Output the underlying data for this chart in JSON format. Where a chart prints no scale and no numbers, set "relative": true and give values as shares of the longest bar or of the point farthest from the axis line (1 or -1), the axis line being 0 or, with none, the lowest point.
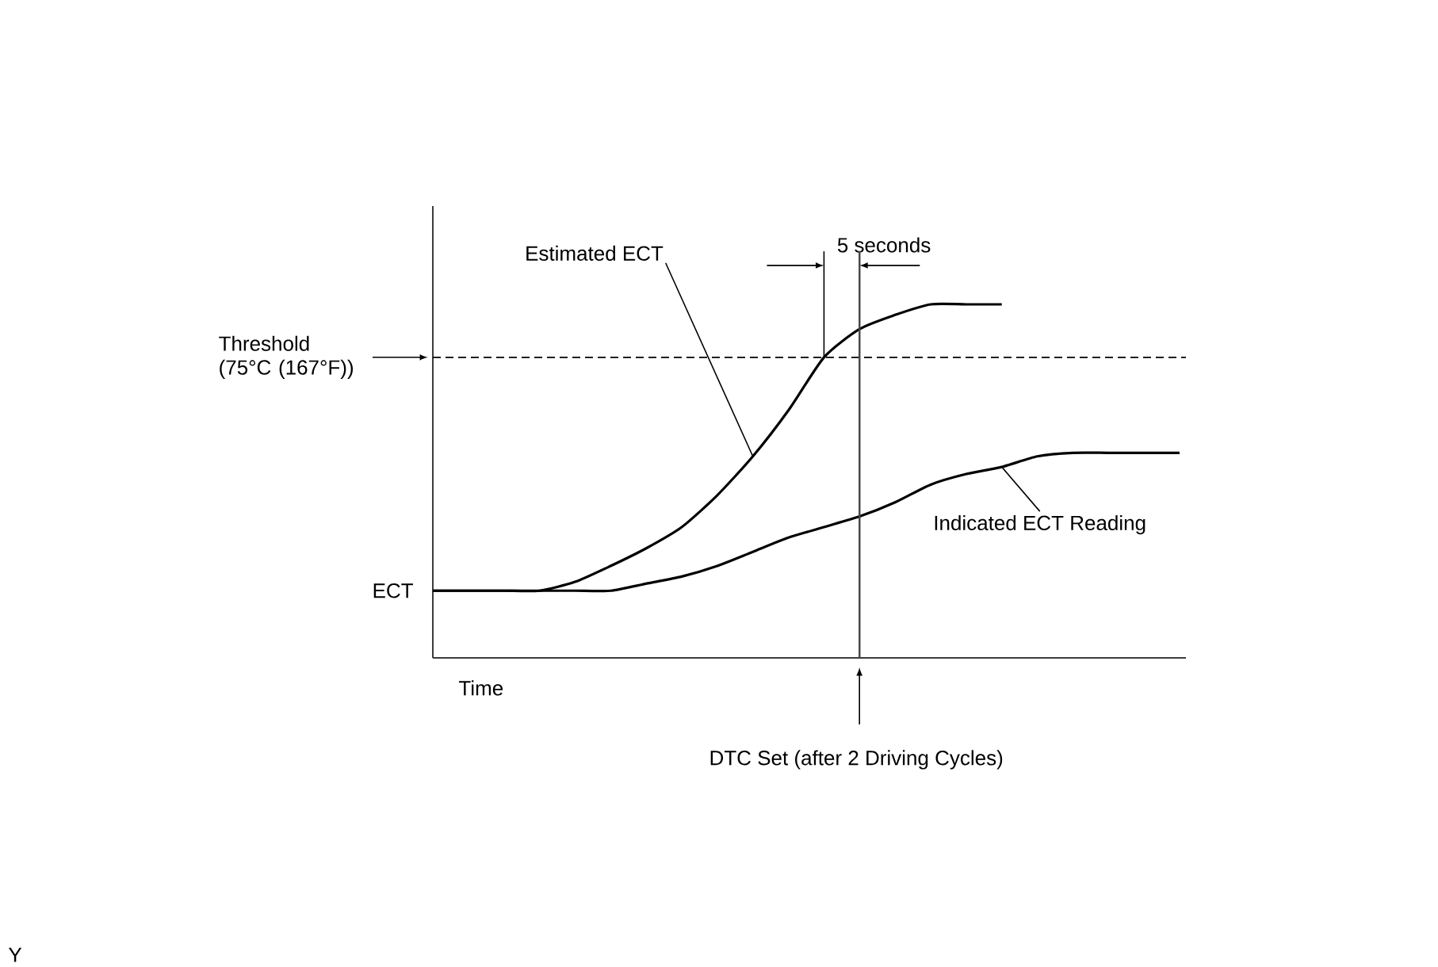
{
  "chart_data": {
    "type": "line",
    "relative": true,
    "xlabel": "Time",
    "ylabel": "ECT",
    "marker": "none",
    "categories": [
      null,
      null,
      null,
      null,
      null,
      null,
      null,
      null,
      null,
      null,
      null,
      null,
      null,
      null,
      null,
      null,
      null,
      null,
      null,
      null,
      null,
      null
    ],
    "series": [
      {
        "name": "Estimated ECT",
        "color": "#000000",
        "values": [
          0.19,
          0.19,
          0.19,
          0.19,
          0.215,
          0.26,
          0.31,
          0.37,
          0.46,
          0.57,
          0.7,
          0.85,
          0.93,
          0.97,
          1.0,
          1.0,
          1.0,
          null,
          null,
          null,
          null,
          null
        ]
      },
      {
        "name": "Indicated ECT Reading",
        "color": "#000000",
        "values": [
          0.19,
          0.19,
          0.19,
          0.19,
          0.19,
          0.19,
          0.21,
          0.23,
          0.26,
          0.3,
          0.34,
          0.37,
          0.4,
          0.44,
          0.49,
          0.52,
          0.54,
          0.57,
          0.58,
          0.58,
          0.58,
          0.58
        ]
      }
    ],
    "ref_lines": [
      {
        "axis": "y",
        "value": 0.85,
        "label": "Threshold (75°C (167°F))",
        "color": "#000000",
        "line_style": "dashed"
      }
    ],
    "annotations": [
      "5 seconds",
      "DTC Set (after 2 Driving Cycles)",
      "Y"
    ]
  }
}
